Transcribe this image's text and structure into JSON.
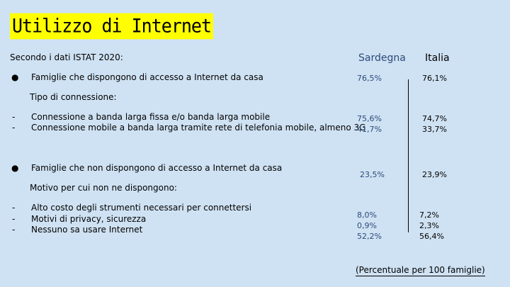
{
  "title": "Utilizzo di Internet",
  "intro": "Secondo i dati ISTAT 2020:",
  "columns": {
    "sardegna": "Sardegna",
    "italia": "Italia"
  },
  "rows": {
    "accesso": {
      "label": "Famiglie che dispongono di accesso a Internet da casa",
      "sardegna": "76,5%",
      "italia": "76,1%"
    },
    "tipo_heading": "Tipo di connessione:",
    "tipo": [
      {
        "label": "Connessione a banda larga fissa e/o banda larga mobile",
        "sardegna": "75,6%",
        "italia": "74,7%"
      },
      {
        "label": "Connessione mobile a banda larga tramite rete di telefonia mobile, almeno 3G",
        "sardegna": "41,7%",
        "italia": "33,7%"
      }
    ],
    "non_accesso": {
      "label": "Famiglie che non dispongono di accesso a Internet da casa",
      "sardegna": "23,5%",
      "italia": "23,9%"
    },
    "motivo_heading": "Motivo per cui non ne dispongono:",
    "motivi": [
      {
        "label": "Alto costo degli strumenti necessari per connettersi",
        "sardegna": "8,0%",
        "italia": "7,2%"
      },
      {
        "label": "Motivi di privacy, sicurezza",
        "sardegna": "0,9%",
        "italia": "2,3%"
      },
      {
        "label": "Nessuno sa usare Internet",
        "sardegna": "52,2%",
        "italia": "56,4%"
      }
    ]
  },
  "footnote": "(Percentuale per 100 famiglie)",
  "bullet_char": "●",
  "dash_char": "-"
}
